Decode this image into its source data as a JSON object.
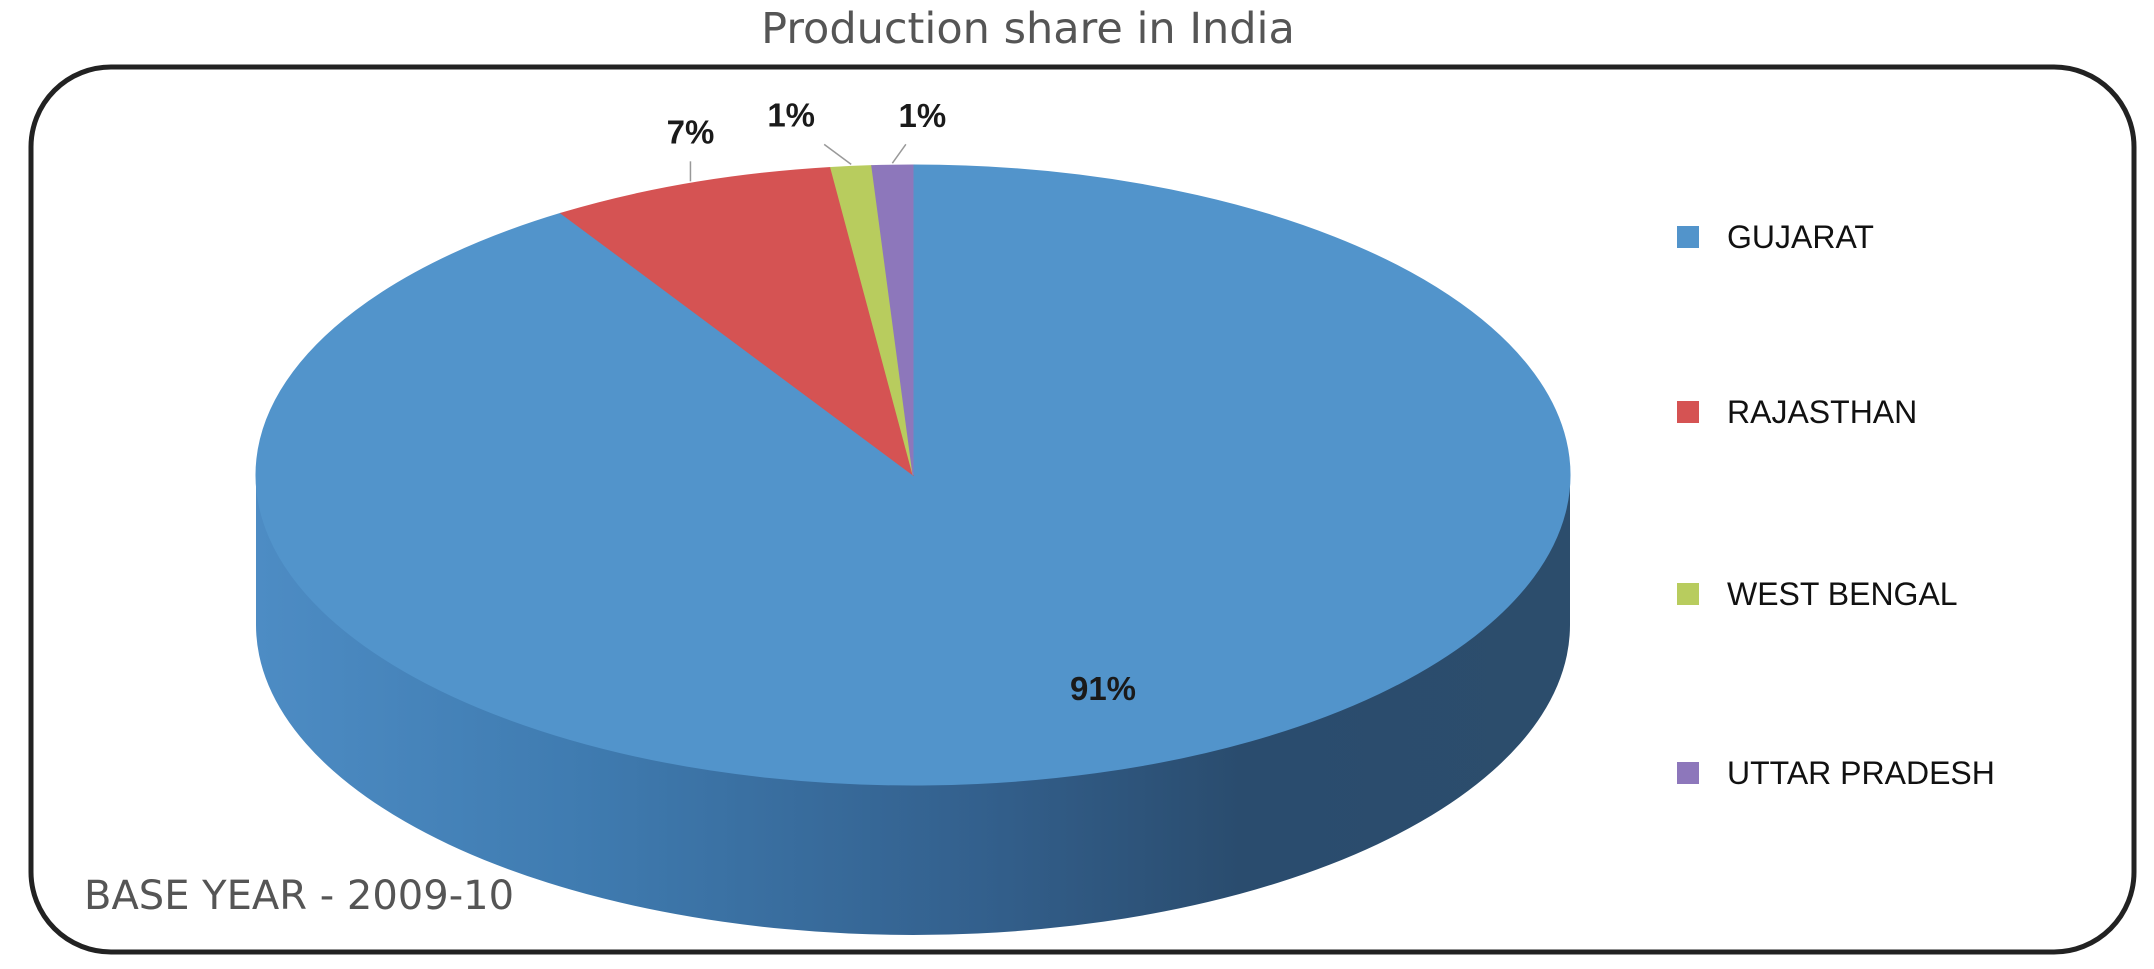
{
  "chart_data": {
    "type": "pie",
    "title": "Production share in India",
    "footnote": "BASE YEAR - 2009-10",
    "slices": [
      {
        "label": "GUJARAT",
        "value": 91,
        "data_label": "91%",
        "color": "#5294cb"
      },
      {
        "label": "RAJASTHAN",
        "value": 7,
        "data_label": "7%",
        "color": "#d55353"
      },
      {
        "label": "WEST BENGAL",
        "value": 1,
        "data_label": "1%",
        "color": "#b8cc5e"
      },
      {
        "label": "UTTAR PRADESH",
        "value": 1,
        "data_label": "1%",
        "color": "#8d77bb"
      }
    ],
    "legend_position": "right",
    "three_d": true
  }
}
